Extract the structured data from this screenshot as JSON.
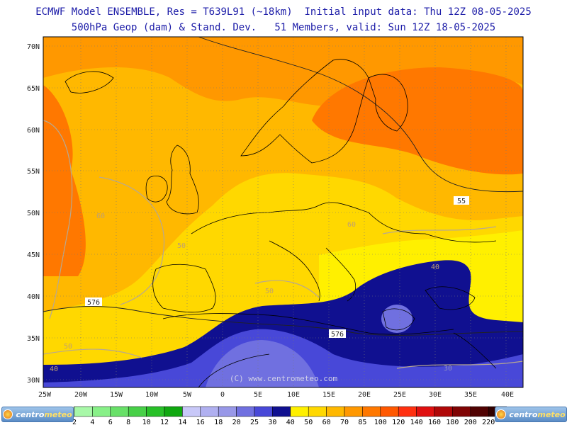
{
  "header": {
    "line1": "ECMWF Model ENSEMBLE, Res = T639L91 (~18km)  Initial input data: Thu 12Z 08-05-2025",
    "line2": "500hPa Geop (dam) & Stand. Dev.   51 Members, valid: Sun 12Z 18-05-2025"
  },
  "map": {
    "lat_labels": [
      "70N",
      "65N",
      "60N",
      "55N",
      "50N",
      "45N",
      "40N",
      "35N",
      "30N"
    ],
    "lon_labels": [
      "25W",
      "20W",
      "15W",
      "10W",
      "5W",
      "0",
      "5E",
      "10E",
      "15E",
      "20E",
      "25E",
      "30E",
      "35E",
      "40E"
    ],
    "contour_labels": {
      "c552": "55",
      "c576_west": "576",
      "c576_east": "576"
    },
    "sd_labels": [
      "60",
      "60",
      "50",
      "50",
      "40",
      "50",
      "40",
      "30"
    ],
    "copyright": "(C) www.centrometeo.com"
  },
  "colorbar": {
    "ticks": [
      "2",
      "4",
      "6",
      "8",
      "10",
      "12",
      "14",
      "16",
      "18",
      "20",
      "25",
      "30",
      "40",
      "50",
      "60",
      "70",
      "85",
      "100",
      "120",
      "140",
      "160",
      "180",
      "200",
      "220"
    ],
    "colors": [
      "#a8f8a8",
      "#88f088",
      "#68e068",
      "#48d048",
      "#28c028",
      "#10a810",
      "#c8c8f8",
      "#b0b0f0",
      "#9898e8",
      "#7070e0",
      "#4848d8",
      "#101090",
      "#fff000",
      "#ffd800",
      "#ffb800",
      "#ff9800",
      "#ff7800",
      "#ff5800",
      "#ff3010",
      "#e01010",
      "#b00808",
      "#800404",
      "#500202",
      "#300000"
    ]
  },
  "logo": {
    "part1": "centro",
    "part2": "meteo"
  }
}
